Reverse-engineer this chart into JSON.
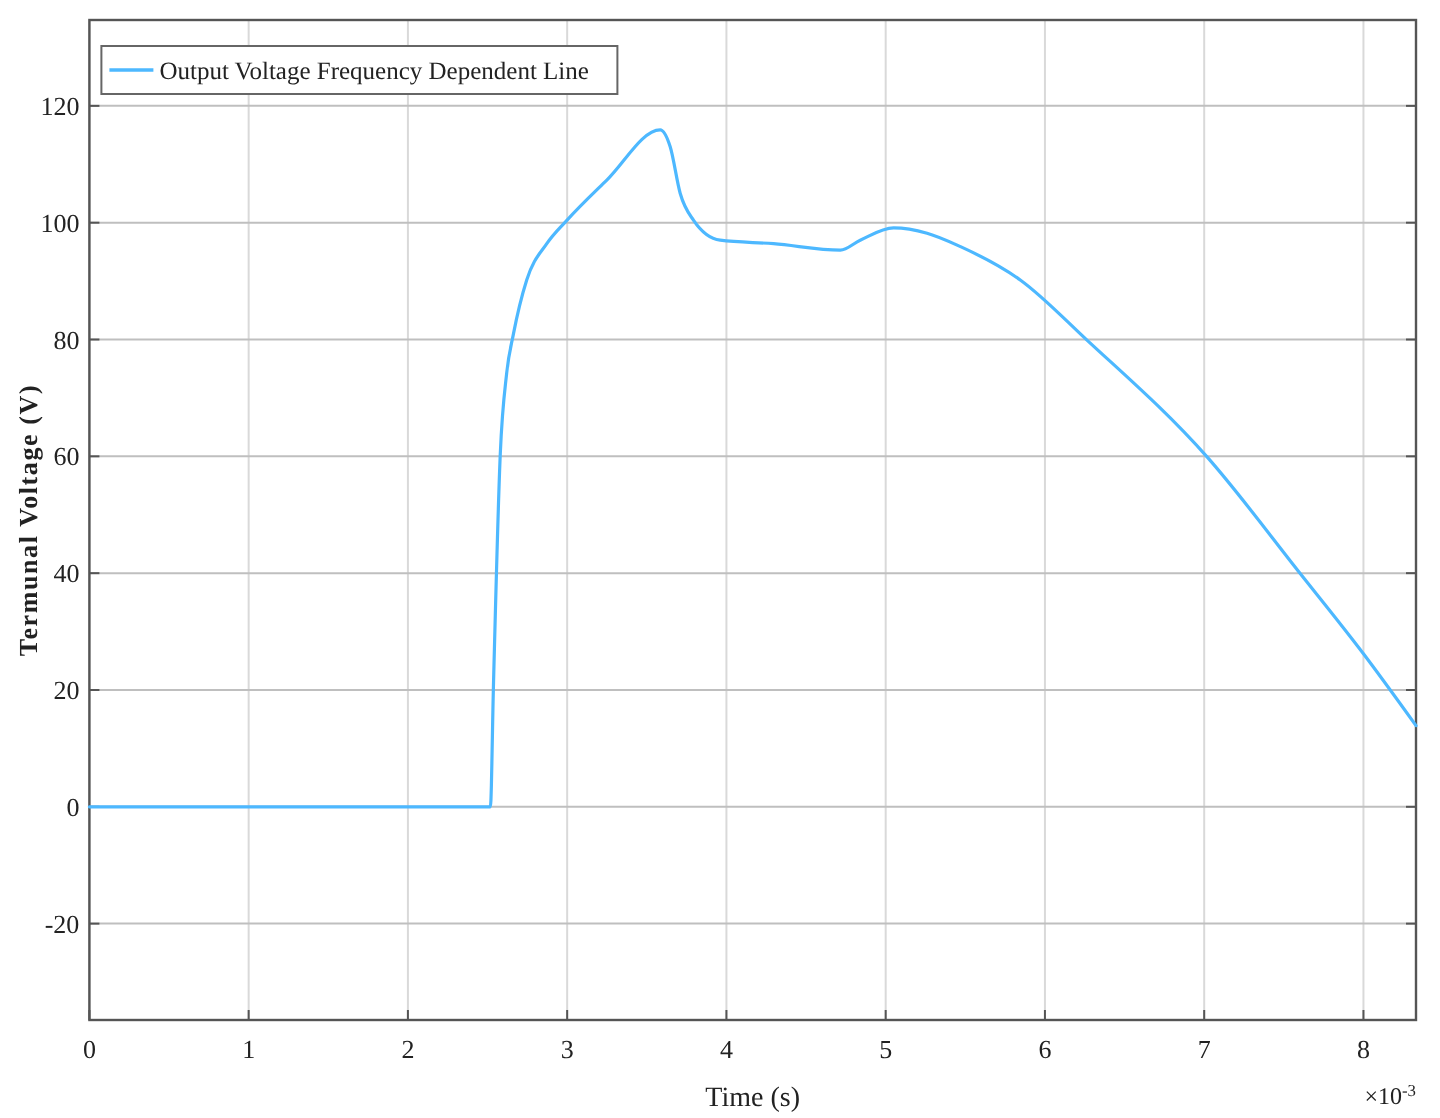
{
  "chart_data": {
    "type": "line",
    "xlabel": "Time (s)",
    "ylabel": "Termunal Voltage (V)",
    "annotations": [
      "×10$^{-3}$"
    ],
    "xlim": [
      0,
      8.33
    ],
    "ylim": [
      -36.5,
      134.7
    ],
    "xticks": [
      0,
      1,
      2,
      3,
      4,
      5,
      6,
      7,
      8
    ],
    "yticks": [
      -20,
      0,
      20,
      40,
      60,
      80,
      100,
      120
    ],
    "grid": true,
    "legend": "top left",
    "marker": "none",
    "line_style": "solid",
    "series": [
      {
        "name": "Output Voltage Frequency Dependent Line",
        "color": "#4db8ff",
        "x": [
          0,
          2.518,
          2.537,
          2.58,
          2.62,
          2.663,
          2.746,
          2.872,
          2.998,
          3.249,
          3.584,
          3.647,
          3.71,
          3.794,
          3.961,
          4.296,
          4.715,
          4.84,
          5.05,
          5.26,
          5.47,
          5.845,
          6.264,
          7.018,
          7.604,
          8.0,
          8.33
        ],
        "values": [
          0,
          0,
          20.6,
          60.4,
          74.2,
          81,
          90.2,
          96.4,
          100.4,
          107.3,
          115.9,
          113,
          105,
          100.4,
          97,
          96.4,
          95.3,
          97,
          99.1,
          98.2,
          95.9,
          90.2,
          79.9,
          59.9,
          39.9,
          26.2,
          13.9
        ]
      }
    ]
  }
}
